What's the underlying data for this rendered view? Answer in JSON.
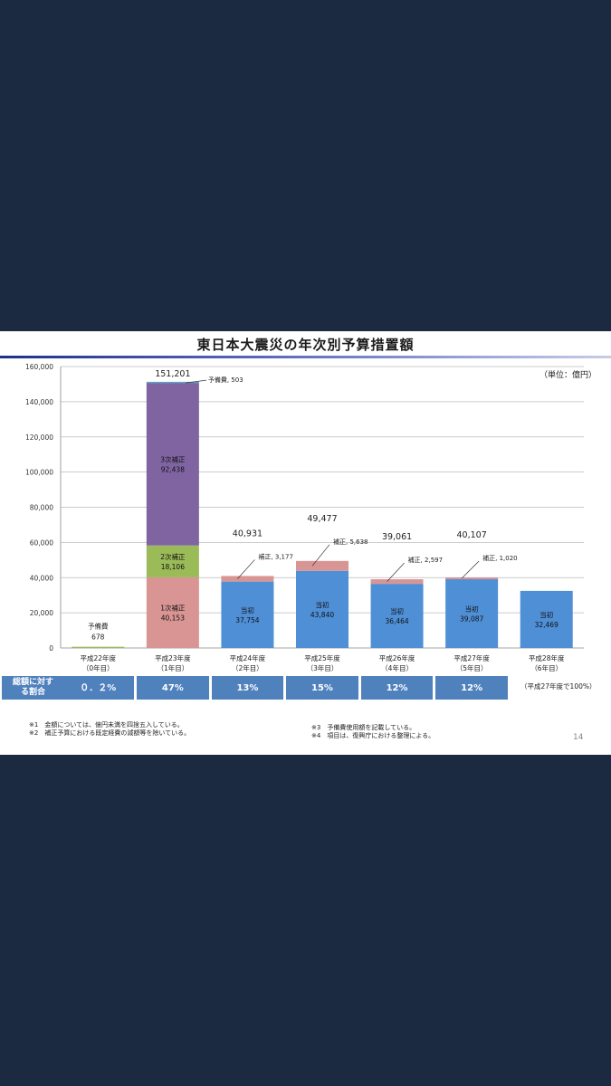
{
  "title": "東日本大震災の年次別予算措置額",
  "unit": "（単位：億円）",
  "page_number": "14",
  "chart_data": {
    "type": "bar",
    "stacked": true,
    "categories": [
      [
        "平成22年度",
        "（0年目）"
      ],
      [
        "平成23年度",
        "（1年目）"
      ],
      [
        "平成24年度",
        "（2年目）"
      ],
      [
        "平成25年度",
        "（3年目）"
      ],
      [
        "平成26年度",
        "（4年目）"
      ],
      [
        "平成27年度",
        "（5年目）"
      ],
      [
        "平成28年度",
        "（6年目）"
      ]
    ],
    "ylim": [
      0,
      160000
    ],
    "yticks": [
      "0",
      "20,000",
      "40,000",
      "60,000",
      "80,000",
      "100,000",
      "120,000",
      "140,000",
      "160,000"
    ],
    "grid": true,
    "bars": [
      {
        "segments": [
          {
            "value": 678,
            "color": "#9bbb59",
            "label": [
              "予備費",
              "678"
            ],
            "label_pos": "above"
          }
        ],
        "total": ""
      },
      {
        "segments": [
          {
            "value": 40153,
            "color": "#d99594",
            "label": [
              "1次補正",
              "40,153"
            ],
            "label_pos": "inside"
          },
          {
            "value": 18106,
            "color": "#9bbb59",
            "label": [
              "2次補正",
              "18,106"
            ],
            "label_pos": "inside"
          },
          {
            "value": 92438,
            "color": "#8064a2",
            "label": [
              "3次補正",
              "92,438"
            ],
            "label_pos": "inside"
          },
          {
            "value": 503,
            "color": "#4bacc6",
            "label": [
              "予備費, 503"
            ],
            "label_pos": "callout"
          }
        ],
        "total": "151,201"
      },
      {
        "segments": [
          {
            "value": 37754,
            "color": "#4f8fd6",
            "label": [
              "当初",
              "37,754"
            ],
            "label_pos": "inside"
          },
          {
            "value": 3177,
            "color": "#d99594",
            "label": [
              "補正, 3,177"
            ],
            "label_pos": "callout"
          }
        ],
        "total": "40,931"
      },
      {
        "segments": [
          {
            "value": 43840,
            "color": "#4f8fd6",
            "label": [
              "当初",
              "43,840"
            ],
            "label_pos": "inside"
          },
          {
            "value": 5638,
            "color": "#d99594",
            "label": [
              "補正, 5,638"
            ],
            "label_pos": "callout"
          }
        ],
        "total": "49,477"
      },
      {
        "segments": [
          {
            "value": 36464,
            "color": "#4f8fd6",
            "label": [
              "当初",
              "36,464"
            ],
            "label_pos": "inside"
          },
          {
            "value": 2597,
            "color": "#d99594",
            "label": [
              "補正, 2,597"
            ],
            "label_pos": "callout"
          }
        ],
        "total": "39,061"
      },
      {
        "segments": [
          {
            "value": 39087,
            "color": "#4f8fd6",
            "label": [
              "当初",
              "39,087"
            ],
            "label_pos": "inside"
          },
          {
            "value": 1020,
            "color": "#d99594",
            "label": [
              "補正, 1,020"
            ],
            "label_pos": "callout"
          }
        ],
        "total": "40,107"
      },
      {
        "segments": [
          {
            "value": 32469,
            "color": "#4f8fd6",
            "label": [
              "当初",
              "32,469"
            ],
            "label_pos": "inside"
          }
        ],
        "total": ""
      }
    ]
  },
  "ratio_row": {
    "header": [
      "総額に対す",
      "る割合"
    ],
    "values": [
      "０．２%",
      "47%",
      "13%",
      "15%",
      "12%",
      "12%"
    ],
    "note": "（平成27年度で100%）"
  },
  "footnotes": {
    "n1": "※1　金額については、億円未満を四捨五入している。",
    "n2": "※2　補正予算における既定経費の減額等を除いている。",
    "n3": "※3　予備費使用額を記載している。",
    "n4": "※4　項目は、復興庁における整理による。"
  }
}
